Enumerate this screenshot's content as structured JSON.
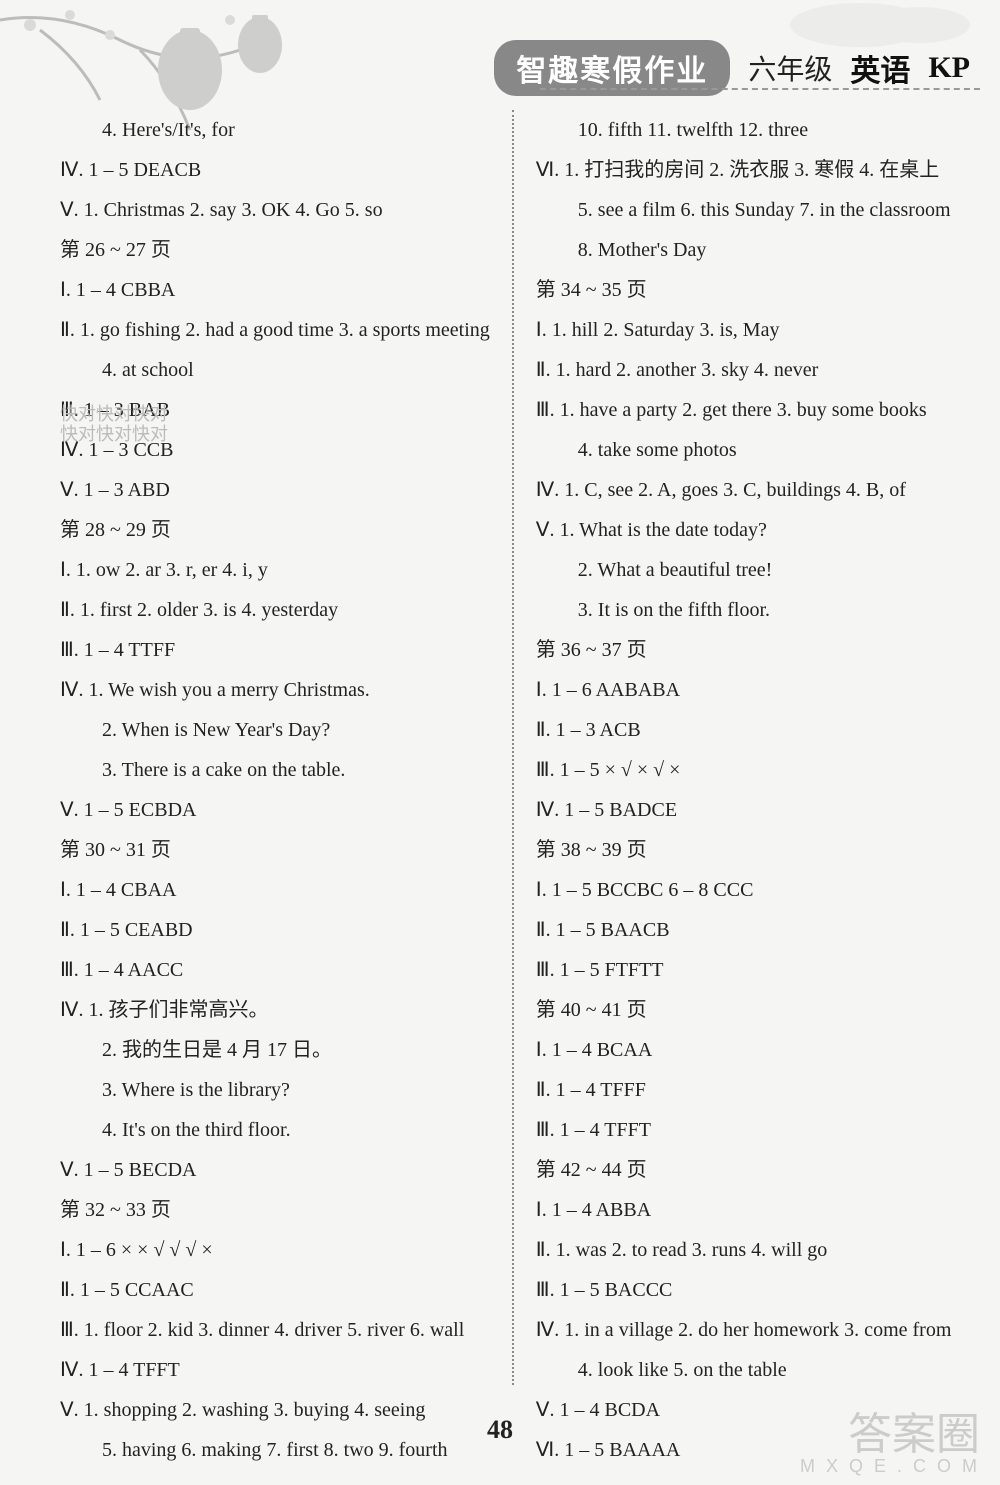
{
  "header": {
    "title": "智趣寒假作业",
    "grade": "六年级",
    "subject": "英语",
    "kp": "KP"
  },
  "page_number": "48",
  "watermarks": {
    "w1": "快对快对快对",
    "w2": "快对快对快对",
    "footer_big": "答案圈",
    "footer_small": "M X Q E . C O M"
  },
  "left": [
    {
      "t": "indent",
      "v": "4. Here's/It's, for"
    },
    {
      "t": "line",
      "v": "Ⅳ. 1 – 5 DEACB"
    },
    {
      "t": "line",
      "v": "Ⅴ. 1. Christmas   2. say   3. OK   4. Go   5. so"
    },
    {
      "t": "line",
      "v": "第 26 ~ 27 页"
    },
    {
      "t": "line",
      "v": "Ⅰ. 1 – 4 CBBA"
    },
    {
      "t": "line",
      "v": "Ⅱ. 1. go fishing   2. had a good time   3. a sports meeting"
    },
    {
      "t": "indent",
      "v": "4. at school"
    },
    {
      "t": "line",
      "v": "Ⅲ. 1 – 3 BAB"
    },
    {
      "t": "line",
      "v": "Ⅳ. 1 – 3 CCB"
    },
    {
      "t": "line",
      "v": "Ⅴ. 1 – 3 ABD"
    },
    {
      "t": "line",
      "v": "第 28 ~ 29 页"
    },
    {
      "t": "line",
      "v": "Ⅰ. 1. ow   2. ar   3. r, er   4. i, y"
    },
    {
      "t": "line",
      "v": "Ⅱ. 1. first   2. older   3. is   4. yesterday"
    },
    {
      "t": "line",
      "v": "Ⅲ. 1 – 4 TTFF"
    },
    {
      "t": "line",
      "v": "Ⅳ. 1. We wish you a merry Christmas."
    },
    {
      "t": "indent",
      "v": "2. When is New Year's Day?"
    },
    {
      "t": "indent",
      "v": "3. There is a cake on the table."
    },
    {
      "t": "line",
      "v": "Ⅴ. 1 – 5 ECBDA"
    },
    {
      "t": "line",
      "v": "第 30 ~ 31 页"
    },
    {
      "t": "line",
      "v": "Ⅰ. 1 – 4 CBAA"
    },
    {
      "t": "line",
      "v": "Ⅱ. 1 – 5 CEABD"
    },
    {
      "t": "line",
      "v": "Ⅲ. 1 – 4 AACC"
    },
    {
      "t": "line",
      "v": "Ⅳ. 1. 孩子们非常高兴。"
    },
    {
      "t": "indent",
      "v": "2. 我的生日是 4 月 17 日。"
    },
    {
      "t": "indent",
      "v": "3. Where is the library?"
    },
    {
      "t": "indent",
      "v": "4. It's on the third floor."
    },
    {
      "t": "line",
      "v": "Ⅴ. 1 – 5 BECDA"
    },
    {
      "t": "line",
      "v": "第 32 ~ 33 页"
    },
    {
      "t": "line",
      "v": "Ⅰ. 1 – 6  × × √ √ √ ×"
    },
    {
      "t": "line",
      "v": "Ⅱ. 1 – 5 CCAAC"
    },
    {
      "t": "line",
      "v": "Ⅲ. 1. floor   2. kid   3. dinner   4. driver   5. river   6. wall"
    },
    {
      "t": "line",
      "v": "Ⅳ. 1 – 4 TFFT"
    },
    {
      "t": "line",
      "v": "Ⅴ. 1. shopping   2. washing   3. buying   4. seeing"
    },
    {
      "t": "indent",
      "v": "5. having   6. making   7. first   8. two   9. fourth"
    }
  ],
  "right": [
    {
      "t": "indent",
      "v": "10. fifth   11. twelfth   12. three"
    },
    {
      "t": "line",
      "v": "Ⅵ. 1. 打扫我的房间   2. 洗衣服   3. 寒假   4. 在桌上"
    },
    {
      "t": "indent",
      "v": "5. see a film   6. this Sunday   7. in the classroom"
    },
    {
      "t": "indent",
      "v": "8. Mother's Day"
    },
    {
      "t": "line",
      "v": "第 34 ~ 35 页"
    },
    {
      "t": "line",
      "v": "Ⅰ. 1. hill   2. Saturday   3. is,  May"
    },
    {
      "t": "line",
      "v": "Ⅱ. 1. hard   2. another   3. sky   4. never"
    },
    {
      "t": "line",
      "v": "Ⅲ. 1. have a party   2. get there   3. buy some books"
    },
    {
      "t": "indent",
      "v": "4. take some photos"
    },
    {
      "t": "line",
      "v": "Ⅳ. 1. C, see   2. A, goes   3. C, buildings   4. B, of"
    },
    {
      "t": "line",
      "v": "Ⅴ. 1. What is the date today?"
    },
    {
      "t": "indent",
      "v": "2. What a beautiful tree!"
    },
    {
      "t": "indent",
      "v": "3. It is on the fifth floor."
    },
    {
      "t": "line",
      "v": "第 36 ~ 37 页"
    },
    {
      "t": "line",
      "v": "Ⅰ. 1 – 6 AABABA"
    },
    {
      "t": "line",
      "v": "Ⅱ. 1 – 3 ACB"
    },
    {
      "t": "line",
      "v": "Ⅲ. 1 – 5  × √ × √ ×"
    },
    {
      "t": "line",
      "v": "Ⅳ. 1 – 5 BADCE"
    },
    {
      "t": "line",
      "v": "第 38 ~ 39 页"
    },
    {
      "t": "line",
      "v": "Ⅰ. 1 – 5 BCCBC   6 – 8 CCC"
    },
    {
      "t": "line",
      "v": "Ⅱ. 1 – 5 BAACB"
    },
    {
      "t": "line",
      "v": "Ⅲ. 1 – 5 FTFTT"
    },
    {
      "t": "line",
      "v": "第 40 ~ 41 页"
    },
    {
      "t": "line",
      "v": "Ⅰ. 1 – 4 BCAA"
    },
    {
      "t": "line",
      "v": "Ⅱ. 1 – 4 TFFF"
    },
    {
      "t": "line",
      "v": "Ⅲ. 1 – 4 TFFT"
    },
    {
      "t": "line",
      "v": "第 42 ~ 44 页"
    },
    {
      "t": "line",
      "v": "Ⅰ. 1 – 4 ABBA"
    },
    {
      "t": "line",
      "v": "Ⅱ. 1. was   2. to read   3. runs   4. will go"
    },
    {
      "t": "line",
      "v": "Ⅲ. 1 – 5 BACCC"
    },
    {
      "t": "line",
      "v": "Ⅳ. 1. in a village   2. do her homework   3. come from"
    },
    {
      "t": "indent",
      "v": "4. look like   5. on the table"
    },
    {
      "t": "line",
      "v": "Ⅴ. 1 – 4 BCDA"
    },
    {
      "t": "line",
      "v": "Ⅵ. 1 – 5 BAAAA"
    }
  ]
}
